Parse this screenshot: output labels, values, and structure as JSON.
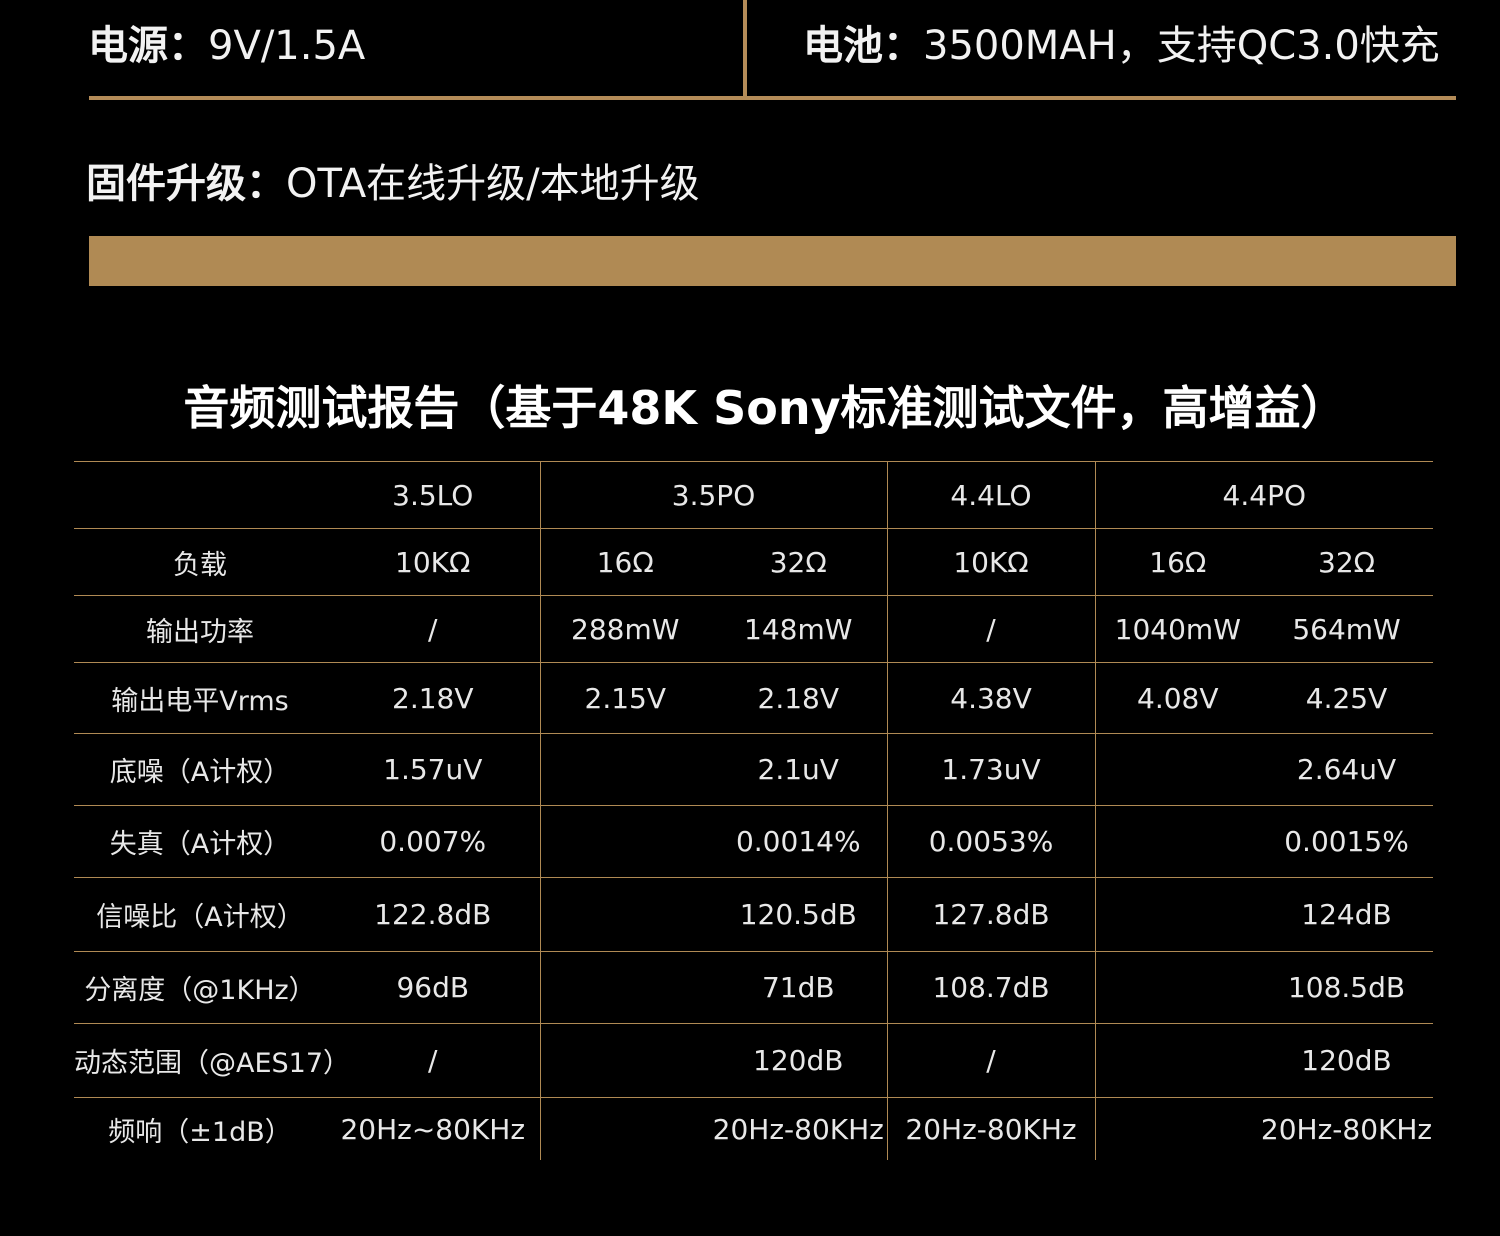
{
  "specs": {
    "power": {
      "label": "电源：",
      "value": "9V/1.5A"
    },
    "battery": {
      "label": "电池：",
      "value": "3500MAH，支持QC3.0快充"
    },
    "firmware": {
      "label": "固件升级：",
      "value": "OTA在线升级/本地升级"
    }
  },
  "report": {
    "title": "音频测试报告（基于48K Sony标准测试文件，高增益）",
    "columns": [
      "3.5LO",
      "3.5PO",
      "4.4LO",
      "4.4PO"
    ],
    "rows": [
      {
        "label": "负载",
        "lo35": "10KΩ",
        "po35a": "16Ω",
        "po35b": "32Ω",
        "lo44": "10KΩ",
        "po44a": "16Ω",
        "po44b": "32Ω"
      },
      {
        "label": "输出功率",
        "lo35": "/",
        "po35a": "288mW",
        "po35b": "148mW",
        "lo44": "/",
        "po44a": "1040mW",
        "po44b": "564mW"
      },
      {
        "label": "输出电平Vrms",
        "lo35": "2.18V",
        "po35a": "2.15V",
        "po35b": "2.18V",
        "lo44": "4.38V",
        "po44a": "4.08V",
        "po44b": "4.25V"
      },
      {
        "label": "底噪（A计权）",
        "lo35": "1.57uV",
        "po35": "2.1uV",
        "lo44": "1.73uV",
        "po44": "2.64uV"
      },
      {
        "label": "失真（A计权）",
        "lo35": "0.007%",
        "po35": "0.0014%",
        "lo44": "0.0053%",
        "po44": "0.0015%"
      },
      {
        "label": "信噪比（A计权）",
        "lo35": "122.8dB",
        "po35": "120.5dB",
        "lo44": "127.8dB",
        "po44": "124dB"
      },
      {
        "label": "分离度（@1KHz）",
        "lo35": "96dB",
        "po35": "71dB",
        "lo44": "108.7dB",
        "po44": "108.5dB"
      },
      {
        "label": "动态范围（@AES17）",
        "lo35": "/",
        "po35": "120dB",
        "lo44": "/",
        "po44": "120dB"
      },
      {
        "label": "频响（±1dB）",
        "lo35": "20Hz~80KHz",
        "po35": "20Hz-80KHz",
        "lo44": "20Hz-80KHz",
        "po44": "20Hz-80KHz"
      }
    ]
  },
  "colors": {
    "background": "#000000",
    "accent": "#b08a54",
    "text": "#ffffff"
  }
}
